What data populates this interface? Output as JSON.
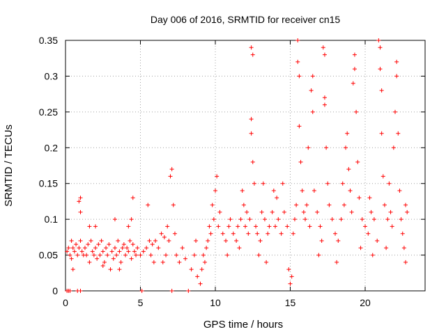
{
  "chart_data": {
    "type": "scatter",
    "title": "Day 006 of 2016, SRMTID for receiver cn15",
    "xlabel": "GPS time / hours",
    "ylabel": "SRMTID / TECUs",
    "xlim": [
      0,
      24
    ],
    "ylim": [
      0,
      0.35
    ],
    "x_ticks": [
      0,
      5,
      10,
      15,
      20
    ],
    "x_tick_labels": [
      "0",
      "5",
      "10",
      "15",
      "20"
    ],
    "y_ticks": [
      0,
      0.05,
      0.1,
      0.15,
      0.2,
      0.25,
      0.3,
      0.35
    ],
    "y_tick_labels": [
      "0",
      "0.05",
      "0.1",
      "0.15",
      "0.2",
      "0.25",
      "0.3",
      "0.35"
    ],
    "grid": true,
    "marker": "plus",
    "color": "#ff0000",
    "series": [
      {
        "name": "SRMTID",
        "points": [
          [
            0.1,
            0.0
          ],
          [
            0.2,
            0.0
          ],
          [
            0.3,
            0.0
          ],
          [
            0.1,
            0.055
          ],
          [
            0.2,
            0.06
          ],
          [
            0.3,
            0.05
          ],
          [
            0.4,
            0.07
          ],
          [
            0.4,
            0.045
          ],
          [
            0.5,
            0.06
          ],
          [
            0.6,
            0.055
          ],
          [
            0.7,
            0.065
          ],
          [
            0.8,
            0.05
          ],
          [
            0.9,
            0.06
          ],
          [
            1.0,
            0.07
          ],
          [
            1.1,
            0.055
          ],
          [
            1.0,
            0.13
          ],
          [
            0.9,
            0.125
          ],
          [
            1.0,
            0.11
          ],
          [
            0.8,
            0.0
          ],
          [
            1.0,
            0.0
          ],
          [
            1.3,
            0.06
          ],
          [
            1.4,
            0.05
          ],
          [
            1.5,
            0.065
          ],
          [
            1.6,
            0.04
          ],
          [
            1.7,
            0.07
          ],
          [
            1.8,
            0.055
          ],
          [
            1.9,
            0.05
          ],
          [
            2.0,
            0.06
          ],
          [
            2.1,
            0.045
          ],
          [
            2.2,
            0.065
          ],
          [
            2.3,
            0.05
          ],
          [
            2.4,
            0.07
          ],
          [
            2.5,
            0.055
          ],
          [
            2.6,
            0.04
          ],
          [
            2.7,
            0.06
          ],
          [
            2.8,
            0.05
          ],
          [
            2.9,
            0.065
          ],
          [
            3.0,
            0.03
          ],
          [
            3.1,
            0.055
          ],
          [
            3.2,
            0.045
          ],
          [
            3.3,
            0.06
          ],
          [
            3.4,
            0.05
          ],
          [
            3.5,
            0.07
          ],
          [
            3.6,
            0.055
          ],
          [
            3.7,
            0.04
          ],
          [
            3.8,
            0.06
          ],
          [
            3.9,
            0.065
          ],
          [
            4.0,
            0.05
          ],
          [
            4.1,
            0.06
          ],
          [
            4.2,
            0.055
          ],
          [
            4.3,
            0.07
          ],
          [
            4.4,
            0.045
          ],
          [
            4.5,
            0.065
          ],
          [
            4.6,
            0.055
          ],
          [
            4.2,
            0.09
          ],
          [
            4.4,
            0.1
          ],
          [
            4.5,
            0.13
          ],
          [
            3.3,
            0.1
          ],
          [
            2.0,
            0.09
          ],
          [
            1.6,
            0.09
          ],
          [
            4.8,
            0.06
          ],
          [
            5.0,
            0.05
          ],
          [
            5.2,
            0.055
          ],
          [
            5.1,
            0.0
          ],
          [
            5.4,
            0.06
          ],
          [
            5.6,
            0.07
          ],
          [
            5.7,
            0.05
          ],
          [
            5.5,
            0.12
          ],
          [
            5.8,
            0.065
          ],
          [
            6.0,
            0.07
          ],
          [
            6.2,
            0.06
          ],
          [
            6.4,
            0.08
          ],
          [
            6.6,
            0.075
          ],
          [
            6.8,
            0.09
          ],
          [
            6.9,
            0.07
          ],
          [
            7.0,
            0.16
          ],
          [
            7.1,
            0.17
          ],
          [
            7.2,
            0.12
          ],
          [
            7.3,
            0.08
          ],
          [
            7.1,
            0.0
          ],
          [
            7.4,
            0.05
          ],
          [
            7.6,
            0.04
          ],
          [
            7.8,
            0.06
          ],
          [
            8.0,
            0.045
          ],
          [
            8.2,
            0.0
          ],
          [
            8.4,
            0.03
          ],
          [
            8.6,
            0.05
          ],
          [
            8.8,
            0.02
          ],
          [
            9.0,
            0.01
          ],
          [
            9.2,
            0.05
          ],
          [
            8.7,
            0.07
          ],
          [
            9.1,
            0.03
          ],
          [
            9.4,
            0.06
          ],
          [
            9.5,
            0.07
          ],
          [
            9.6,
            0.09
          ],
          [
            9.7,
            0.08
          ],
          [
            9.8,
            0.12
          ],
          [
            9.9,
            0.1
          ],
          [
            10.0,
            0.14
          ],
          [
            10.1,
            0.16
          ],
          [
            10.2,
            0.09
          ],
          [
            10.3,
            0.11
          ],
          [
            10.5,
            0.08
          ],
          [
            10.7,
            0.07
          ],
          [
            10.9,
            0.09
          ],
          [
            11.0,
            0.1
          ],
          [
            11.2,
            0.08
          ],
          [
            11.4,
            0.07
          ],
          [
            11.5,
            0.09
          ],
          [
            11.7,
            0.1
          ],
          [
            11.8,
            0.14
          ],
          [
            11.9,
            0.12
          ],
          [
            12.0,
            0.09
          ],
          [
            12.1,
            0.11
          ],
          [
            12.2,
            0.08
          ],
          [
            12.3,
            0.1
          ],
          [
            12.4,
            0.24
          ],
          [
            12.4,
            0.22
          ],
          [
            12.4,
            0.34
          ],
          [
            12.5,
            0.33
          ],
          [
            12.5,
            0.18
          ],
          [
            12.6,
            0.15
          ],
          [
            12.7,
            0.09
          ],
          [
            12.8,
            0.08
          ],
          [
            13.0,
            0.07
          ],
          [
            13.1,
            0.11
          ],
          [
            13.2,
            0.15
          ],
          [
            13.3,
            0.1
          ],
          [
            13.5,
            0.08
          ],
          [
            13.6,
            0.09
          ],
          [
            13.8,
            0.11
          ],
          [
            14.0,
            0.09
          ],
          [
            14.2,
            0.1
          ],
          [
            14.4,
            0.08
          ],
          [
            14.6,
            0.11
          ],
          [
            14.8,
            0.09
          ],
          [
            14.9,
            0.03
          ],
          [
            15.0,
            0.01
          ],
          [
            15.1,
            0.02
          ],
          [
            15.2,
            0.08
          ],
          [
            15.3,
            0.1
          ],
          [
            15.4,
            0.12
          ],
          [
            15.5,
            0.35
          ],
          [
            15.5,
            0.32
          ],
          [
            15.6,
            0.3
          ],
          [
            15.6,
            0.23
          ],
          [
            15.7,
            0.18
          ],
          [
            15.8,
            0.14
          ],
          [
            15.9,
            0.11
          ],
          [
            16.0,
            0.1
          ],
          [
            16.1,
            0.12
          ],
          [
            16.3,
            0.09
          ],
          [
            16.4,
            0.28
          ],
          [
            16.5,
            0.3
          ],
          [
            16.5,
            0.25
          ],
          [
            16.6,
            0.14
          ],
          [
            16.8,
            0.11
          ],
          [
            17.0,
            0.09
          ],
          [
            17.2,
            0.34
          ],
          [
            17.3,
            0.33
          ],
          [
            17.3,
            0.27
          ],
          [
            17.3,
            0.26
          ],
          [
            17.4,
            0.2
          ],
          [
            17.5,
            0.15
          ],
          [
            17.6,
            0.12
          ],
          [
            17.8,
            0.1
          ],
          [
            18.0,
            0.08
          ],
          [
            18.2,
            0.07
          ],
          [
            18.4,
            0.1
          ],
          [
            18.6,
            0.12
          ],
          [
            18.7,
            0.2
          ],
          [
            18.8,
            0.22
          ],
          [
            18.9,
            0.17
          ],
          [
            19.0,
            0.14
          ],
          [
            19.1,
            0.11
          ],
          [
            19.2,
            0.29
          ],
          [
            19.3,
            0.33
          ],
          [
            19.3,
            0.31
          ],
          [
            19.4,
            0.25
          ],
          [
            19.5,
            0.18
          ],
          [
            19.6,
            0.13
          ],
          [
            19.8,
            0.1
          ],
          [
            20.0,
            0.09
          ],
          [
            20.2,
            0.08
          ],
          [
            20.4,
            0.11
          ],
          [
            20.6,
            0.1
          ],
          [
            20.8,
            0.07
          ],
          [
            20.9,
            0.35
          ],
          [
            21.0,
            0.34
          ],
          [
            21.0,
            0.31
          ],
          [
            21.1,
            0.28
          ],
          [
            21.1,
            0.22
          ],
          [
            21.2,
            0.16
          ],
          [
            21.3,
            0.12
          ],
          [
            21.5,
            0.1
          ],
          [
            21.7,
            0.11
          ],
          [
            21.8,
            0.09
          ],
          [
            21.9,
            0.2
          ],
          [
            22.0,
            0.25
          ],
          [
            22.1,
            0.32
          ],
          [
            22.1,
            0.3
          ],
          [
            22.2,
            0.22
          ],
          [
            22.3,
            0.14
          ],
          [
            22.4,
            0.1
          ],
          [
            22.5,
            0.08
          ],
          [
            22.6,
            0.06
          ],
          [
            22.7,
            0.04
          ],
          [
            22.7,
            0.12
          ],
          [
            16.9,
            0.05
          ],
          [
            17.1,
            0.07
          ],
          [
            18.1,
            0.04
          ],
          [
            19.7,
            0.06
          ],
          [
            20.5,
            0.05
          ],
          [
            21.4,
            0.06
          ],
          [
            13.4,
            0.04
          ],
          [
            12.9,
            0.05
          ],
          [
            11.6,
            0.06
          ],
          [
            10.8,
            0.05
          ],
          [
            9.3,
            0.04
          ],
          [
            6.5,
            0.04
          ],
          [
            6.7,
            0.05
          ],
          [
            5.9,
            0.04
          ],
          [
            4.7,
            0.05
          ],
          [
            3.6,
            0.03
          ],
          [
            2.5,
            0.035
          ],
          [
            1.2,
            0.05
          ],
          [
            0.5,
            0.03
          ],
          [
            14.1,
            0.13
          ],
          [
            14.5,
            0.15
          ],
          [
            13.9,
            0.14
          ],
          [
            16.2,
            0.2
          ],
          [
            18.5,
            0.15
          ],
          [
            20.3,
            0.13
          ],
          [
            21.6,
            0.15
          ],
          [
            22.8,
            0.11
          ]
        ]
      }
    ]
  }
}
